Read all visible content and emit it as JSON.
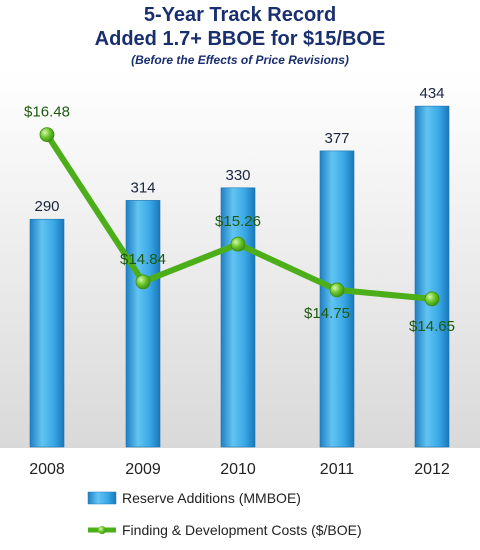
{
  "chart_data": {
    "type": "bar",
    "title": "5-Year Track Record",
    "subtitle": "Added 1.7+ BBOE for $15/BOE",
    "note": "(Before the Effects of Price Revisions)",
    "categories": [
      "2008",
      "2009",
      "2010",
      "2011",
      "2012"
    ],
    "series": [
      {
        "name": "Reserve Additions (MMBOE)",
        "type": "bar",
        "values": [
          290,
          314,
          330,
          377,
          434
        ],
        "labels": [
          "290",
          "314",
          "330",
          "377",
          "434"
        ],
        "color": "#3aa8e6"
      },
      {
        "name": "Finding & Development Costs ($/BOE)",
        "type": "line",
        "values": [
          16.48,
          14.84,
          15.26,
          14.75,
          14.65
        ],
        "labels": [
          "$16.48",
          "$14.84",
          "$15.26",
          "$14.75",
          "$14.65"
        ],
        "color": "#4caf1a"
      }
    ],
    "bar_axis": {
      "min": 0,
      "max": 480
    },
    "line_axis": {
      "min": 13.0,
      "max": 17.2
    },
    "grid": false,
    "legend": "bottom",
    "colors": {
      "title": "#1a2f6e",
      "bar": "#3aa8e6",
      "line": "#4caf1a",
      "line_label": "#1d5a10"
    }
  }
}
